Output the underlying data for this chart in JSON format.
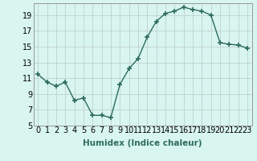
{
  "x": [
    0,
    1,
    2,
    3,
    4,
    5,
    6,
    7,
    8,
    9,
    10,
    11,
    12,
    13,
    14,
    15,
    16,
    17,
    18,
    19,
    20,
    21,
    22,
    23
  ],
  "y": [
    11.5,
    10.5,
    10.0,
    10.5,
    8.2,
    8.5,
    6.3,
    6.3,
    6.0,
    10.2,
    12.2,
    13.5,
    16.2,
    18.2,
    19.2,
    19.5,
    20.0,
    19.7,
    19.5,
    19.0,
    15.5,
    15.3,
    15.2,
    14.8
  ],
  "line_color": "#2e6b5e",
  "marker": "+",
  "marker_size": 4,
  "marker_lw": 1.2,
  "bg_color": "#d8f5f0",
  "grid_color": "#c0d0cc",
  "xlabel": "Humidex (Indice chaleur)",
  "xlim": [
    -0.5,
    23.5
  ],
  "ylim": [
    5,
    20.5
  ],
  "yticks": [
    5,
    7,
    9,
    11,
    13,
    15,
    17,
    19
  ],
  "xticks": [
    0,
    1,
    2,
    3,
    4,
    5,
    6,
    7,
    8,
    9,
    10,
    11,
    12,
    13,
    14,
    15,
    16,
    17,
    18,
    19,
    20,
    21,
    22,
    23
  ],
  "xlabel_fontsize": 7.5,
  "tick_fontsize": 7,
  "line_width": 1.0
}
